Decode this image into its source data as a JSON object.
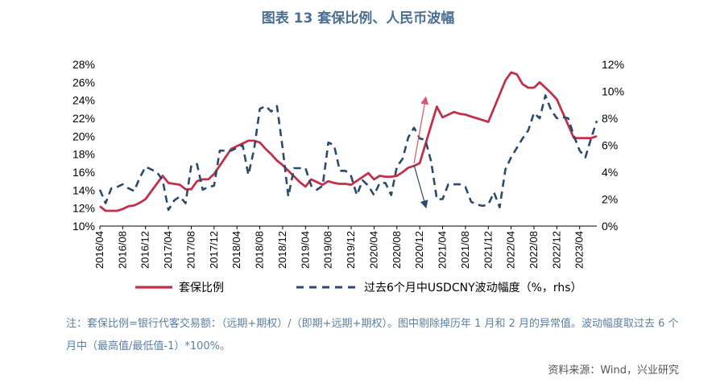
{
  "title": "图表 13  套保比例、人民币波幅",
  "note": "注：套保比例=银行代客交易额：（远期+期权）/（即期+远期+期权）。图中剔除掉历年 1 月和 2 月的异常值。波动幅度取过去 6 个月中（最高值/最低值-1）*100%。",
  "source": "资料来源：Wind，兴业研究",
  "chart_data": {
    "type": "line",
    "x_ticks": [
      "2016/04",
      "2016/08",
      "2016/12",
      "2017/04",
      "2017/08",
      "2017/12",
      "2018/04",
      "2018/08",
      "2018/12",
      "2019/04",
      "2019/08",
      "2019/12",
      "2020/04",
      "2020/08",
      "2020/12",
      "2021/04",
      "2021/08",
      "2021/12",
      "2022/04",
      "2022/08",
      "2022/12",
      "2023/04"
    ],
    "x_range": [
      "2016/04",
      "2023/07"
    ],
    "ylim_left": [
      10,
      28
    ],
    "ylim_right": [
      0,
      12
    ],
    "y_ticks_left": [
      "10%",
      "12%",
      "14%",
      "16%",
      "18%",
      "20%",
      "22%",
      "24%",
      "26%",
      "28%"
    ],
    "y_ticks_right": [
      "0%",
      "2%",
      "4%",
      "6%",
      "8%",
      "10%",
      "12%"
    ],
    "series": [
      {
        "name": "套保比例",
        "axis": "left",
        "color": "#c0324b",
        "style": "solid",
        "points": [
          [
            "2016/04",
            12.2
          ],
          [
            "2016/05",
            11.7
          ],
          [
            "2016/06",
            11.7
          ],
          [
            "2016/07",
            11.7
          ],
          [
            "2016/08",
            11.9
          ],
          [
            "2016/09",
            12.2
          ],
          [
            "2016/10",
            12.3
          ],
          [
            "2016/11",
            12.6
          ],
          [
            "2016/12",
            13.0
          ],
          [
            "2017/03",
            15.6
          ],
          [
            "2017/04",
            14.8
          ],
          [
            "2017/05",
            14.7
          ],
          [
            "2017/06",
            14.6
          ],
          [
            "2017/07",
            14.1
          ],
          [
            "2017/08",
            14.1
          ],
          [
            "2017/09",
            15.0
          ],
          [
            "2017/10",
            15.2
          ],
          [
            "2017/11",
            15.2
          ],
          [
            "2017/12",
            15.8
          ],
          [
            "2018/03",
            18.6
          ],
          [
            "2018/04",
            18.9
          ],
          [
            "2018/05",
            19.2
          ],
          [
            "2018/06",
            19.5
          ],
          [
            "2018/07",
            19.5
          ],
          [
            "2018/08",
            19.3
          ],
          [
            "2018/09",
            18.6
          ],
          [
            "2018/10",
            18.0
          ],
          [
            "2018/11",
            17.3
          ],
          [
            "2018/12",
            16.8
          ],
          [
            "2019/03",
            14.9
          ],
          [
            "2019/04",
            14.4
          ],
          [
            "2019/05",
            15.2
          ],
          [
            "2019/06",
            14.9
          ],
          [
            "2019/07",
            14.6
          ],
          [
            "2019/08",
            15.0
          ],
          [
            "2019/09",
            14.8
          ],
          [
            "2019/10",
            14.7
          ],
          [
            "2019/11",
            14.7
          ],
          [
            "2019/12",
            14.6
          ],
          [
            "2020/03",
            15.9
          ],
          [
            "2020/04",
            15.2
          ],
          [
            "2020/05",
            15.6
          ],
          [
            "2020/06",
            15.5
          ],
          [
            "2020/07",
            15.5
          ],
          [
            "2020/08",
            15.6
          ],
          [
            "2020/09",
            16.0
          ],
          [
            "2020/10",
            16.5
          ],
          [
            "2020/11",
            16.7
          ],
          [
            "2020/12",
            17.0
          ],
          [
            "2021/03",
            23.3
          ],
          [
            "2021/04",
            22.1
          ],
          [
            "2021/05",
            22.4
          ],
          [
            "2021/06",
            22.7
          ],
          [
            "2021/07",
            22.5
          ],
          [
            "2021/08",
            22.4
          ],
          [
            "2021/09",
            22.2
          ],
          [
            "2021/10",
            22.0
          ],
          [
            "2021/11",
            21.8
          ],
          [
            "2021/12",
            21.6
          ],
          [
            "2022/03",
            26.2
          ],
          [
            "2022/04",
            27.1
          ],
          [
            "2022/05",
            26.9
          ],
          [
            "2022/06",
            25.8
          ],
          [
            "2022/07",
            25.4
          ],
          [
            "2022/08",
            25.4
          ],
          [
            "2022/09",
            26.0
          ],
          [
            "2022/10",
            25.4
          ],
          [
            "2022/11",
            24.8
          ],
          [
            "2022/12",
            24.1
          ],
          [
            "2023/03",
            19.8
          ],
          [
            "2023/04",
            19.8
          ],
          [
            "2023/05",
            19.8
          ],
          [
            "2023/06",
            19.8
          ],
          [
            "2023/07",
            20.0
          ]
        ]
      },
      {
        "name": "过去6个月中USDCNY波动幅度（%，rhs）",
        "axis": "right",
        "color": "#2c4a6e",
        "style": "dashed",
        "points": [
          [
            "2016/04",
            2.7
          ],
          [
            "2016/05",
            1.7
          ],
          [
            "2016/06",
            2.8
          ],
          [
            "2016/07",
            2.9
          ],
          [
            "2016/08",
            3.1
          ],
          [
            "2016/09",
            2.8
          ],
          [
            "2016/10",
            2.6
          ],
          [
            "2016/11",
            3.6
          ],
          [
            "2016/12",
            4.4
          ],
          [
            "2017/01",
            4.2
          ],
          [
            "2017/02",
            4.0
          ],
          [
            "2017/03",
            3.4
          ],
          [
            "2017/04",
            1.2
          ],
          [
            "2017/05",
            1.9
          ],
          [
            "2017/06",
            2.2
          ],
          [
            "2017/07",
            1.7
          ],
          [
            "2017/08",
            4.5
          ],
          [
            "2017/09",
            4.6
          ],
          [
            "2017/10",
            2.7
          ],
          [
            "2017/11",
            2.9
          ],
          [
            "2017/12",
            3.0
          ],
          [
            "2018/01",
            5.6
          ],
          [
            "2018/02",
            5.6
          ],
          [
            "2018/03",
            5.6
          ],
          [
            "2018/04",
            5.8
          ],
          [
            "2018/05",
            6.0
          ],
          [
            "2018/06",
            3.8
          ],
          [
            "2018/07",
            5.7
          ],
          [
            "2018/08",
            8.7
          ],
          [
            "2018/09",
            8.9
          ],
          [
            "2018/10",
            8.5
          ],
          [
            "2018/11",
            8.9
          ],
          [
            "2018/12",
            5.8
          ],
          [
            "2019/01",
            2.2
          ],
          [
            "2019/02",
            4.3
          ],
          [
            "2019/03",
            4.3
          ],
          [
            "2019/04",
            4.3
          ],
          [
            "2019/05",
            3.0
          ],
          [
            "2019/06",
            2.7
          ],
          [
            "2019/07",
            3.0
          ],
          [
            "2019/08",
            6.2
          ],
          [
            "2019/09",
            6.0
          ],
          [
            "2019/10",
            4.1
          ],
          [
            "2019/11",
            4.1
          ],
          [
            "2019/12",
            3.7
          ],
          [
            "2020/01",
            2.3
          ],
          [
            "2020/02",
            3.4
          ],
          [
            "2020/03",
            3.0
          ],
          [
            "2020/04",
            2.3
          ],
          [
            "2020/05",
            3.2
          ],
          [
            "2020/06",
            3.2
          ],
          [
            "2020/07",
            2.3
          ],
          [
            "2020/08",
            4.4
          ],
          [
            "2020/09",
            5.0
          ],
          [
            "2020/10",
            6.6
          ],
          [
            "2020/11",
            7.3
          ],
          [
            "2020/12",
            6.5
          ],
          [
            "2021/01",
            6.4
          ],
          [
            "2021/02",
            4.8
          ],
          [
            "2021/03",
            2.0
          ],
          [
            "2021/04",
            2.0
          ],
          [
            "2021/05",
            3.1
          ],
          [
            "2021/06",
            3.1
          ],
          [
            "2021/07",
            3.1
          ],
          [
            "2021/08",
            2.9
          ],
          [
            "2021/09",
            1.8
          ],
          [
            "2021/10",
            1.6
          ],
          [
            "2021/11",
            1.5
          ],
          [
            "2021/12",
            1.6
          ],
          [
            "2022/01",
            2.5
          ],
          [
            "2022/02",
            1.4
          ],
          [
            "2022/03",
            4.2
          ],
          [
            "2022/04",
            5.1
          ],
          [
            "2022/05",
            5.8
          ],
          [
            "2022/06",
            6.5
          ],
          [
            "2022/07",
            7.1
          ],
          [
            "2022/08",
            8.4
          ],
          [
            "2022/09",
            8.0
          ],
          [
            "2022/10",
            9.7
          ],
          [
            "2022/11",
            8.6
          ],
          [
            "2022/12",
            8.0
          ],
          [
            "2023/01",
            8.1
          ],
          [
            "2023/02",
            8.0
          ],
          [
            "2023/03",
            6.7
          ],
          [
            "2023/04",
            5.6
          ],
          [
            "2023/05",
            5.1
          ],
          [
            "2023/06",
            6.5
          ],
          [
            "2023/07",
            7.8
          ]
        ]
      }
    ],
    "annotations": [
      {
        "type": "arrow",
        "color": "#d9546a",
        "from": [
          "2020/11",
          17.0
        ],
        "to": [
          "2021/01",
          24.1
        ],
        "axis": "left"
      },
      {
        "type": "arrow",
        "color": "#2c4a6e",
        "from": [
          "2020/11",
          16.8
        ],
        "to": [
          "2021/01",
          12.3
        ],
        "axis": "left"
      }
    ],
    "legend": {
      "placement": "bottom"
    },
    "grid": false
  }
}
